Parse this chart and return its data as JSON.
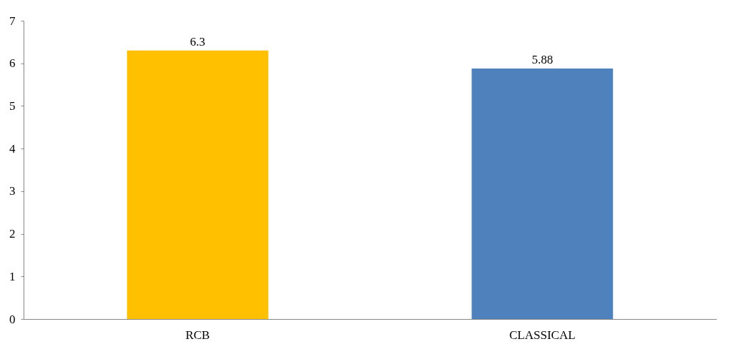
{
  "chart_data": {
    "type": "bar",
    "categories": [
      "RCB",
      "CLASSICAL"
    ],
    "values": [
      6.3,
      5.88
    ],
    "colors": [
      "#ffc000",
      "#4f81bd"
    ],
    "ylim": [
      0,
      7
    ],
    "yticks": [
      0,
      1,
      2,
      3,
      4,
      5,
      6,
      7
    ],
    "grid": false,
    "data_labels": true
  }
}
